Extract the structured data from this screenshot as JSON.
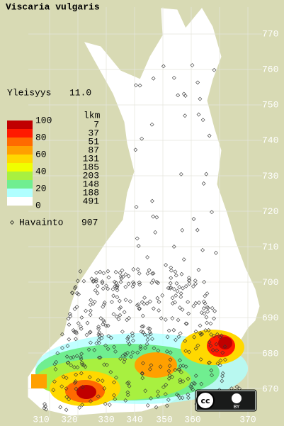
{
  "title": "Viscaria vulgaris",
  "frequency": {
    "label": "Yleisyys",
    "value": "11.0"
  },
  "legend": {
    "scale_labels": [
      "100",
      "80",
      "60",
      "40",
      "20",
      "0"
    ],
    "count_header": "lkm",
    "classes": [
      {
        "color": "#c00000",
        "count": "7"
      },
      {
        "color": "#ff1a00",
        "count": "37"
      },
      {
        "color": "#ff6a00",
        "count": "51"
      },
      {
        "color": "#ffa000",
        "count": "87"
      },
      {
        "color": "#ffd800",
        "count": "131"
      },
      {
        "color": "#f0ff00",
        "count": "185"
      },
      {
        "color": "#a8f040",
        "count": "203"
      },
      {
        "color": "#70ee90",
        "count": "148"
      },
      {
        "color": "#b0ffff",
        "count": "188"
      },
      {
        "color": "#ffffff",
        "count": "491"
      }
    ],
    "observation": {
      "label": "Havainto",
      "count": "907"
    }
  },
  "y_axis_labels": [
    "770",
    "760",
    "750",
    "740",
    "730",
    "720",
    "710",
    "700",
    "690",
    "680",
    "670"
  ],
  "x_axis_labels": [
    "310",
    "320",
    "330",
    "340",
    "350",
    "360",
    "370"
  ],
  "license": {
    "icon": "cc",
    "attribution": "BY"
  }
}
